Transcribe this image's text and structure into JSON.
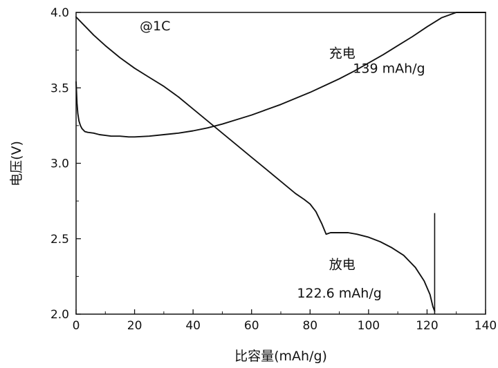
{
  "chart_data": {
    "type": "line",
    "xlabel": "比容量(mAh/g)",
    "ylabel": "电压(V)",
    "xlim": [
      0,
      140
    ],
    "ylim": [
      2.0,
      4.0
    ],
    "xticks": [
      0,
      20,
      40,
      60,
      80,
      100,
      120,
      140
    ],
    "yticks": [
      2.0,
      2.5,
      3.0,
      3.5,
      4.0
    ],
    "xtick_labels": [
      "0",
      "20",
      "40",
      "60",
      "80",
      "100",
      "120",
      "140"
    ],
    "ytick_labels": [
      "2.0",
      "2.5",
      "3.0",
      "3.5",
      "4.0"
    ],
    "grid": false,
    "series": [
      {
        "name": "充电",
        "x": [
          0,
          0.3,
          0.6,
          1,
          1.5,
          2,
          3,
          4,
          6,
          8,
          10,
          12,
          15,
          18,
          20,
          25,
          30,
          35,
          40,
          45,
          50,
          55,
          60,
          65,
          70,
          75,
          80,
          85,
          90,
          95,
          100,
          105,
          110,
          115,
          120,
          125,
          130,
          132,
          134,
          138,
          140
        ],
        "y": [
          3.54,
          3.4,
          3.33,
          3.28,
          3.25,
          3.23,
          3.21,
          3.205,
          3.2,
          3.19,
          3.185,
          3.18,
          3.18,
          3.175,
          3.175,
          3.18,
          3.19,
          3.2,
          3.215,
          3.235,
          3.26,
          3.29,
          3.32,
          3.355,
          3.39,
          3.43,
          3.47,
          3.515,
          3.56,
          3.61,
          3.665,
          3.72,
          3.78,
          3.84,
          3.905,
          3.965,
          4.0,
          4.0,
          4.0,
          4.0,
          4.0
        ]
      },
      {
        "name": "放电",
        "x": [
          0,
          3,
          6,
          10,
          15,
          20,
          25,
          30,
          35,
          40,
          45,
          50,
          55,
          60,
          65,
          70,
          75,
          78,
          80,
          82,
          84,
          85.5,
          87,
          90,
          93,
          96,
          100,
          104,
          108,
          112,
          116,
          119,
          121,
          122,
          122.6
        ],
        "y": [
          3.97,
          3.91,
          3.85,
          3.78,
          3.7,
          3.63,
          3.57,
          3.51,
          3.44,
          3.36,
          3.28,
          3.2,
          3.12,
          3.04,
          2.96,
          2.88,
          2.8,
          2.76,
          2.73,
          2.68,
          2.6,
          2.53,
          2.54,
          2.54,
          2.54,
          2.53,
          2.51,
          2.48,
          2.44,
          2.39,
          2.31,
          2.22,
          2.13,
          2.05,
          2.02
        ]
      }
    ],
    "vertical_marker": {
      "x": 122.6,
      "y_from": 2.0,
      "y_to": 2.67
    },
    "annotations": [
      {
        "text": "@1C",
        "x": 27,
        "y": 3.88
      },
      {
        "text": "充电",
        "x": 91,
        "y": 3.7
      },
      {
        "text": "139 mAh/g",
        "x": 107,
        "y": 3.6
      },
      {
        "text": "放电",
        "x": 91,
        "y": 2.3
      },
      {
        "text": "122.6 mAh/g",
        "x": 90,
        "y": 2.11
      }
    ]
  }
}
